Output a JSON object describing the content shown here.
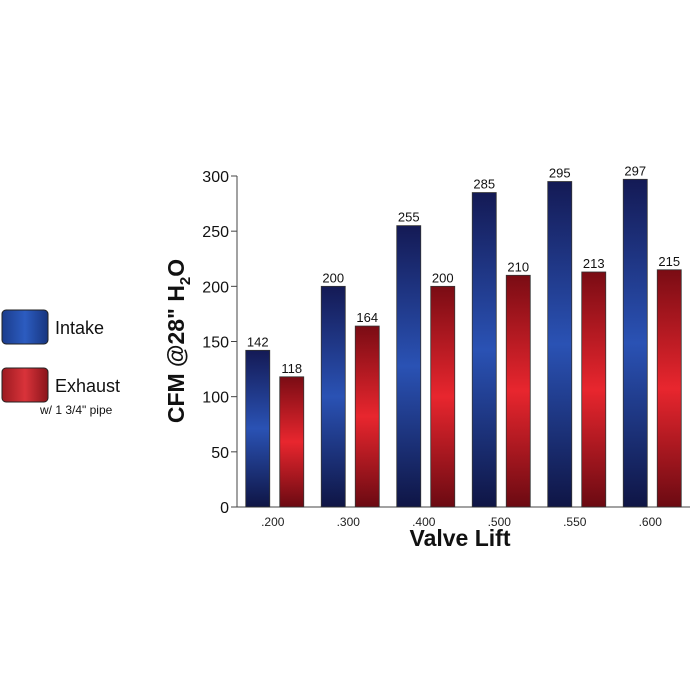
{
  "chart_data": {
    "type": "bar",
    "categories": [
      ".200",
      ".300",
      ".400",
      ".500",
      ".550",
      ".600"
    ],
    "series": [
      {
        "name": "Intake",
        "values": [
          142,
          200,
          255,
          285,
          295,
          297
        ],
        "color": "#1a3a9a"
      },
      {
        "name": "Exhaust",
        "values": [
          118,
          164,
          200,
          210,
          213,
          215
        ],
        "color": "#d41f2a"
      }
    ],
    "legend_note": "w/ 1 3/4\" pipe",
    "xlabel": "Valve Lift",
    "ylabel": {
      "pre": "CFM @28\" H",
      "sub": "2",
      "post": "O"
    },
    "ylim": [
      0,
      300
    ],
    "yticks": [
      0,
      50,
      100,
      150,
      200,
      250,
      300
    ],
    "grid": false,
    "legend_position": "left"
  }
}
